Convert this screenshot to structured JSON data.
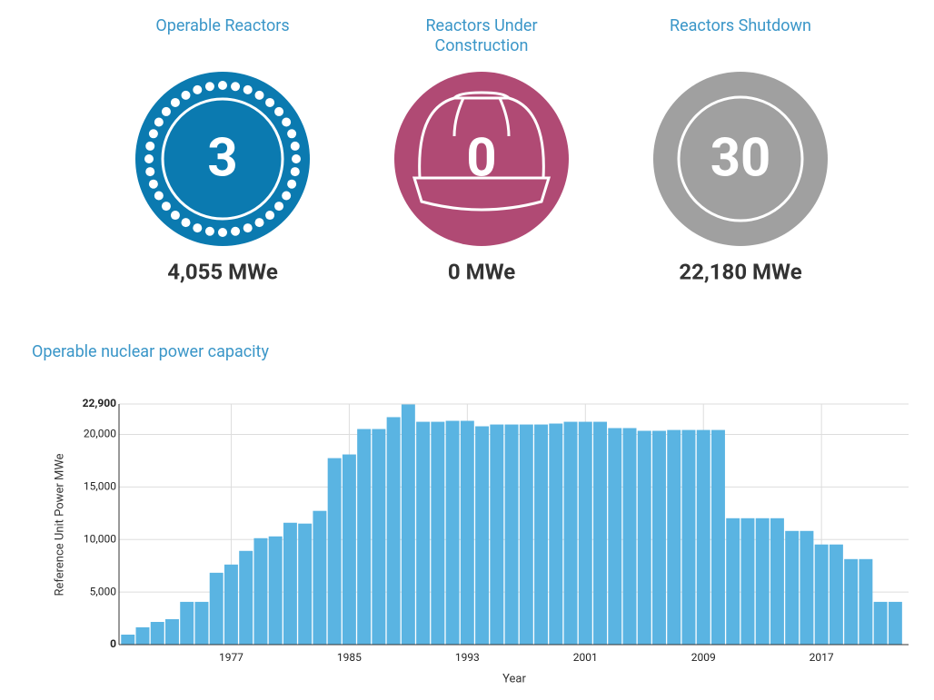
{
  "stats": [
    {
      "title": "Operable Reactors",
      "value": 3,
      "capacity": "4,055 MWe"
    },
    {
      "title": "Reactors Under Construction",
      "value": 0,
      "capacity": "0 MWe"
    },
    {
      "title": "Reactors Shutdown",
      "value": 30,
      "capacity": "22,180 MWe"
    }
  ],
  "chart_data": {
    "type": "bar",
    "title": "Operable nuclear power capacity",
    "x_label": "Year",
    "y_label": "Reference Unit Power MWe",
    "color": "#5ab4e2",
    "x": [
      1970,
      1971,
      1972,
      1973,
      1974,
      1975,
      1976,
      1977,
      1978,
      1979,
      1980,
      1981,
      1982,
      1983,
      1984,
      1985,
      1986,
      1987,
      1988,
      1989,
      1990,
      1991,
      1992,
      1993,
      1994,
      1995,
      1996,
      1997,
      1998,
      1999,
      2000,
      2001,
      2002,
      2003,
      2004,
      2005,
      2006,
      2007,
      2008,
      2009,
      2010,
      2011,
      2012,
      2013,
      2014,
      2015,
      2016,
      2017,
      2018,
      2019,
      2020,
      2021,
      2022
    ],
    "values": [
      950,
      1650,
      2160,
      2420,
      4070,
      4070,
      6840,
      7620,
      8920,
      10130,
      10300,
      11600,
      11520,
      12730,
      17750,
      18100,
      20520,
      20520,
      21650,
      22860,
      21210,
      21210,
      21300,
      21300,
      20780,
      20950,
      20950,
      20950,
      20950,
      21040,
      21210,
      21210,
      21210,
      20610,
      20610,
      20350,
      20350,
      20430,
      20430,
      20430,
      20430,
      12030,
      12030,
      12030,
      12030,
      10820,
      10820,
      9530,
      9530,
      8140,
      8140,
      4070,
      4070
    ],
    "xlim": [
      1969.4,
      2022.9
    ],
    "xticks": [
      1977,
      1985,
      1993,
      2001,
      2009,
      2017
    ],
    "ylim": [
      0,
      22900
    ],
    "yticks": [
      0,
      {
        "value": 5000,
        "label": "5,000"
      },
      {
        "value": 10000,
        "label": "10,000"
      },
      {
        "value": 15000,
        "label": "15,000"
      },
      {
        "value": 20000,
        "label": "20,000"
      },
      {
        "value": 22900,
        "label": "22,900"
      }
    ],
    "grid": true
  }
}
